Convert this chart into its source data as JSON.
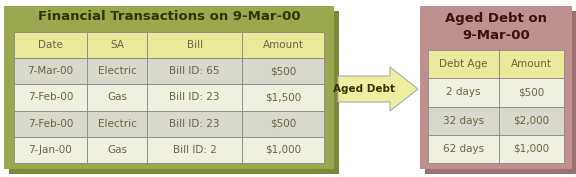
{
  "left_box_bg": "#9BA850",
  "left_box_shadow": "#7A8838",
  "left_title": "Financial Transactions on 9-Mar-00",
  "left_title_color": "#333300",
  "left_header_bg": "#EAEA9A",
  "left_row_bg_light": "#F0F0E0",
  "left_row_bg_dark": "#D8D8CC",
  "left_headers": [
    "Date",
    "SA",
    "Bill",
    "Amount"
  ],
  "left_rows": [
    [
      "7-Mar-00",
      "Electric",
      "Bill ID: 65",
      "$500"
    ],
    [
      "7-Feb-00",
      "Gas",
      "Bill ID: 23",
      "$1,500"
    ],
    [
      "7-Feb-00",
      "Electric",
      "Bill ID: 23",
      "$500"
    ],
    [
      "7-Jan-00",
      "Gas",
      "Bill ID: 2",
      "$1,000"
    ]
  ],
  "right_box_bg": "#C09090",
  "right_box_shadow": "#9A7070",
  "right_title": "Aged Debt on\n9-Mar-00",
  "right_title_color": "#3A1010",
  "right_header_bg": "#EAEA9A",
  "right_row_bg_light": "#F0F0E0",
  "right_row_bg_dark": "#D8D8CC",
  "right_headers": [
    "Debt Age",
    "Amount"
  ],
  "right_rows": [
    [
      "2 days",
      "$500"
    ],
    [
      "32 days",
      "$2,000"
    ],
    [
      "62 days",
      "$1,000"
    ]
  ],
  "arrow_label": "Aged Debt",
  "arrow_fill": "#EEEEA0",
  "arrow_edge": "#AAAAAA",
  "text_color": "#556644",
  "cell_text_color": "#666644",
  "border_color": "#888888"
}
